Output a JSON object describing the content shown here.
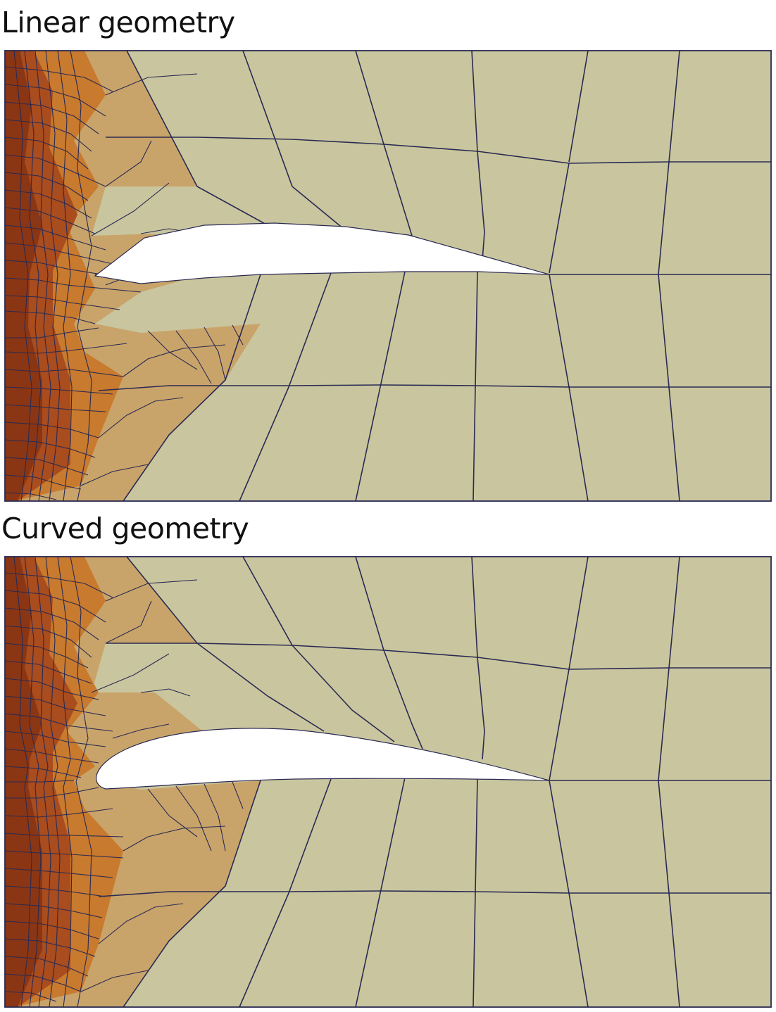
{
  "panels": [
    {
      "id": "linear",
      "title": "Linear geometry"
    },
    {
      "id": "curved",
      "title": "Curved geometry"
    }
  ],
  "colors": {
    "background": "#ffffff",
    "mesh_lines": "#2a2a52",
    "level_0": "#c9c69f",
    "level_1": "#c9a46a",
    "level_2": "#c87a2e",
    "level_3": "#a94c1e",
    "level_4": "#8a3614",
    "airfoil": "#ffffff"
  }
}
